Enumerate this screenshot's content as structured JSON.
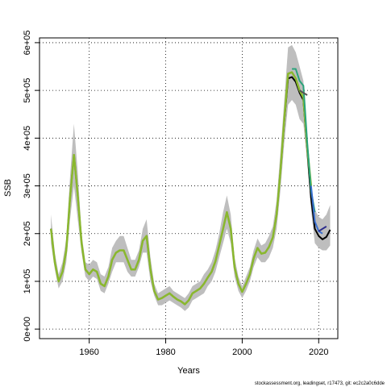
{
  "chart_data": {
    "type": "line",
    "xlabel": "Years",
    "ylabel": "SSB",
    "xlim": [
      1947,
      2025
    ],
    "ylim": [
      -20000,
      610000
    ],
    "x_ticks": [
      1960,
      1980,
      2000,
      2020
    ],
    "y_ticks": [
      0,
      100000,
      200000,
      300000,
      400000,
      500000,
      600000
    ],
    "y_tick_labels": [
      "0e+00",
      "1e+05",
      "2e+05",
      "3e+05",
      "4e+05",
      "5e+05",
      "6e+05"
    ],
    "grid": true,
    "band_color": "#bebebe",
    "credit": "stockassessment.org, leadingset, r17473, git: ec2c2a0c6dde",
    "confidence_band": {
      "x": [
        1950,
        1951,
        1952,
        1953,
        1954,
        1955,
        1956,
        1957,
        1958,
        1959,
        1960,
        1961,
        1962,
        1963,
        1964,
        1965,
        1966,
        1967,
        1968,
        1969,
        1970,
        1971,
        1972,
        1973,
        1974,
        1975,
        1976,
        1977,
        1978,
        1979,
        1980,
        1981,
        1982,
        1983,
        1984,
        1985,
        1986,
        1987,
        1988,
        1989,
        1990,
        1991,
        1992,
        1993,
        1994,
        1995,
        1996,
        1997,
        1998,
        1999,
        2000,
        2001,
        2002,
        2003,
        2004,
        2005,
        2006,
        2007,
        2008,
        2009,
        2010,
        2011,
        2012,
        2013,
        2014,
        2015,
        2016,
        2017,
        2018,
        2019,
        2020,
        2021,
        2022,
        2023
      ],
      "lower": [
        180000,
        125000,
        85000,
        100000,
        140000,
        230000,
        300000,
        230000,
        160000,
        110000,
        100000,
        110000,
        105000,
        80000,
        75000,
        95000,
        120000,
        140000,
        140000,
        140000,
        120000,
        110000,
        110000,
        130000,
        160000,
        160000,
        100000,
        70000,
        50000,
        50000,
        55000,
        60000,
        55000,
        50000,
        45000,
        38000,
        45000,
        60000,
        65000,
        70000,
        75000,
        90000,
        100000,
        120000,
        150000,
        180000,
        210000,
        180000,
        110000,
        80000,
        65000,
        80000,
        100000,
        130000,
        150000,
        140000,
        140000,
        150000,
        170000,
        210000,
        290000,
        390000,
        470000,
        480000,
        470000,
        440000,
        430000,
        350000,
        250000,
        180000,
        170000,
        165000,
        165000,
        175000
      ],
      "upper": [
        240000,
        160000,
        115000,
        140000,
        190000,
        320000,
        430000,
        330000,
        200000,
        140000,
        135000,
        145000,
        140000,
        115000,
        110000,
        130000,
        170000,
        185000,
        195000,
        195000,
        170000,
        145000,
        145000,
        165000,
        210000,
        230000,
        150000,
        95000,
        75000,
        80000,
        85000,
        90000,
        80000,
        75000,
        70000,
        65000,
        75000,
        90000,
        95000,
        100000,
        115000,
        125000,
        140000,
        165000,
        200000,
        245000,
        280000,
        240000,
        150000,
        110000,
        90000,
        110000,
        130000,
        165000,
        190000,
        175000,
        180000,
        195000,
        215000,
        270000,
        370000,
        480000,
        590000,
        595000,
        580000,
        550000,
        520000,
        400000,
        300000,
        250000,
        235000,
        230000,
        240000,
        260000
      ]
    },
    "series": [
      {
        "color": "#000000",
        "x": [
          1950,
          1951,
          1952,
          1953,
          1954,
          1955,
          1956,
          1957,
          1958,
          1959,
          1960,
          1961,
          1962,
          1963,
          1964,
          1965,
          1966,
          1967,
          1968,
          1969,
          1970,
          1971,
          1972,
          1973,
          1974,
          1975,
          1976,
          1977,
          1978,
          1979,
          1980,
          1981,
          1982,
          1983,
          1984,
          1985,
          1986,
          1987,
          1988,
          1989,
          1990,
          1991,
          1992,
          1993,
          1994,
          1995,
          1996,
          1997,
          1998,
          1999,
          2000,
          2001,
          2002,
          2003,
          2004,
          2005,
          2006,
          2007,
          2008,
          2009,
          2010,
          2011,
          2012,
          2013,
          2014,
          2015,
          2016,
          2017,
          2018,
          2019,
          2020,
          2021,
          2022,
          2023
        ],
        "values": [
          210000,
          140000,
          100000,
          120000,
          165000,
          275000,
          365000,
          280000,
          180000,
          125000,
          115000,
          125000,
          120000,
          95000,
          90000,
          110000,
          145000,
          160000,
          165000,
          165000,
          145000,
          125000,
          125000,
          145000,
          185000,
          195000,
          125000,
          80000,
          62000,
          65000,
          70000,
          75000,
          68000,
          62000,
          58000,
          52000,
          60000,
          75000,
          80000,
          85000,
          95000,
          108000,
          120000,
          142000,
          175000,
          210000,
          245000,
          210000,
          130000,
          95000,
          78000,
          95000,
          115000,
          148000,
          170000,
          158000,
          160000,
          172000,
          192000,
          240000,
          330000,
          435000,
          525000,
          528000,
          518000,
          495000,
          480000,
          375000,
          275000,
          210000,
          195000,
          188000,
          193000,
          208000
        ]
      },
      {
        "color": "#8ab82e",
        "x": [
          1950,
          1951,
          1952,
          1953,
          1954,
          1955,
          1956,
          1957,
          1958,
          1959,
          1960,
          1961,
          1962,
          1963,
          1964,
          1965,
          1966,
          1967,
          1968,
          1969,
          1970,
          1971,
          1972,
          1973,
          1974,
          1975,
          1976,
          1977,
          1978,
          1979,
          1980,
          1981,
          1982,
          1983,
          1984,
          1985,
          1986,
          1987,
          1988,
          1989,
          1990,
          1991,
          1992,
          1993,
          1994,
          1995,
          1996,
          1997,
          1998,
          1999,
          2000,
          2001,
          2002,
          2003,
          2004,
          2005,
          2006,
          2007,
          2008,
          2009,
          2010,
          2011,
          2012,
          2013,
          2014,
          2015,
          2016,
          2017,
          2018
        ],
        "values": [
          210000,
          140000,
          100000,
          120000,
          165000,
          275000,
          365000,
          280000,
          180000,
          125000,
          115000,
          125000,
          120000,
          95000,
          90000,
          110000,
          145000,
          160000,
          165000,
          165000,
          145000,
          125000,
          125000,
          145000,
          185000,
          195000,
          125000,
          80000,
          62000,
          65000,
          70000,
          75000,
          68000,
          62000,
          58000,
          52000,
          60000,
          75000,
          80000,
          85000,
          95000,
          108000,
          120000,
          142000,
          175000,
          210000,
          245000,
          210000,
          130000,
          95000,
          78000,
          95000,
          115000,
          148000,
          170000,
          158000,
          160000,
          172000,
          192000,
          240000,
          330000,
          440000,
          535000,
          538000,
          525000,
          500000,
          485000,
          380000,
          300000
        ]
      },
      {
        "color": "#2aa37a",
        "x": [
          2013,
          2014,
          2015,
          2016,
          2017,
          2018,
          2019
        ],
        "values": [
          545000,
          545000,
          520000,
          510000,
          390000,
          290000,
          245000
        ]
      },
      {
        "color": "#3a6fd0",
        "x": [
          2018,
          2019,
          2020,
          2021
        ],
        "values": [
          300000,
          225000,
          205000,
          200000
        ]
      },
      {
        "color": "#2b2b8c",
        "x": [
          2020,
          2021,
          2022
        ],
        "values": [
          205000,
          210000,
          215000
        ]
      },
      {
        "color": "#555555",
        "x": [
          2015,
          2016,
          2017
        ],
        "values": [
          500000,
          495000,
          490000
        ]
      }
    ]
  }
}
